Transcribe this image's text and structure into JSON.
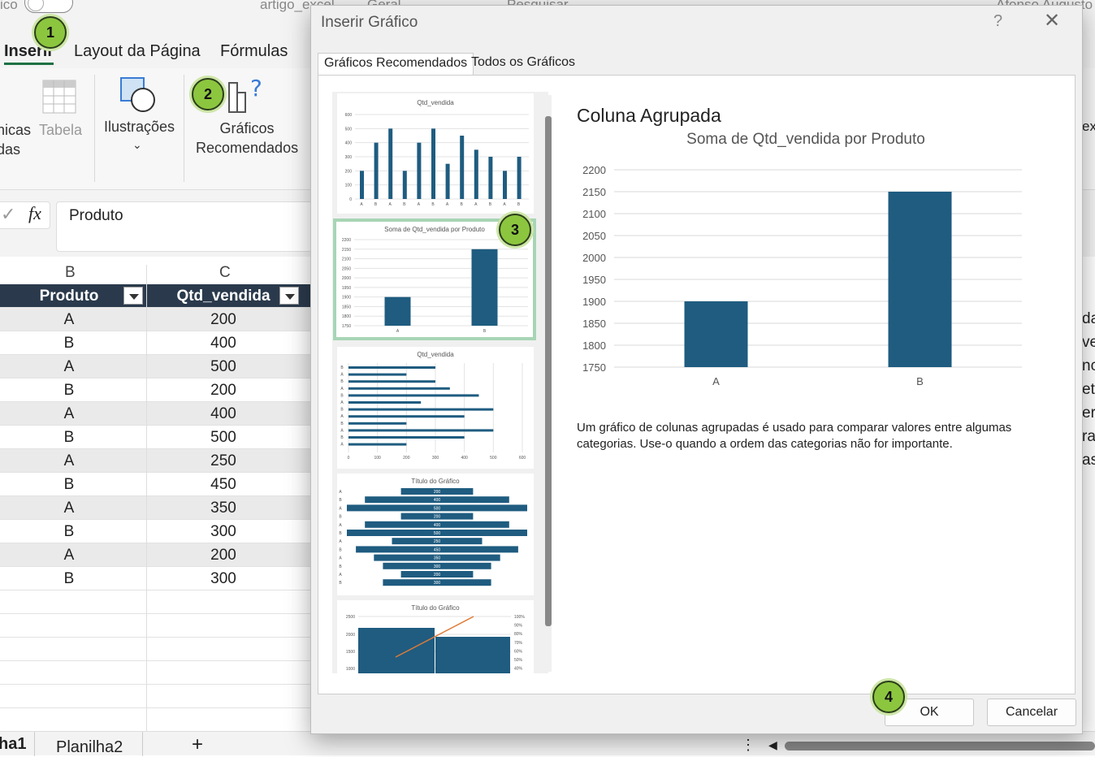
{
  "titlebar": {
    "left_text": "ico",
    "filename": "artigo_excel",
    "sensitivity": "Geral",
    "search": "Pesquisar",
    "user": "Afonso Augusto"
  },
  "ribbon_tabs": [
    "Inserir",
    "Layout da Página",
    "Fórmulas"
  ],
  "ribbon": {
    "tables_partial": "nicas\ndas",
    "table_label": "Tabela",
    "illustrations_label": "Ilustrações",
    "recommended_label": "Gráficos\nRecomendados",
    "right_partial": "ex"
  },
  "formula_bar": {
    "fx": "fx",
    "value": "Produto"
  },
  "columns": [
    "B",
    "C"
  ],
  "table": {
    "headers": [
      "Produto",
      "Qtd_vendida"
    ],
    "rows": [
      [
        "A",
        "200"
      ],
      [
        "B",
        "400"
      ],
      [
        "A",
        "500"
      ],
      [
        "B",
        "200"
      ],
      [
        "A",
        "400"
      ],
      [
        "B",
        "500"
      ],
      [
        "A",
        "250"
      ],
      [
        "B",
        "450"
      ],
      [
        "A",
        "350"
      ],
      [
        "B",
        "300"
      ],
      [
        "A",
        "200"
      ],
      [
        "B",
        "300"
      ]
    ]
  },
  "right_partial_cells": [
    "da",
    "ve",
    "nc",
    "et",
    "er",
    "ra",
    "as"
  ],
  "sheet_tabs": {
    "active_partial": "ha1",
    "other": "Planilha2",
    "add": "+"
  },
  "badges": [
    "1",
    "2",
    "3",
    "4"
  ],
  "dialog": {
    "title": "Inserir Gráfico",
    "help": "?",
    "close": "✕",
    "tabs": [
      "Gráficos Recomendados",
      "Todos os Gráficos"
    ],
    "preview_title": "Coluna Agrupada",
    "description": "Um gráfico de colunas agrupadas é usado para comparar valores entre algumas categorias. Use-o quando a ordem das categorias não for importante.",
    "ok": "OK",
    "cancel": "Cancelar",
    "thumbs": {
      "t1_title": "Qtd_vendida",
      "t2_title": "Soma de Qtd_vendida por Produto",
      "t3_title": "Qtd_vendida",
      "t4_title": "Título do Gráfico",
      "t5_title": "Título do Gráfico"
    }
  },
  "colors": {
    "bar": "#1f5c80",
    "header": "#2a3a4c",
    "selection": "#a8d5b5",
    "badge": "#8cc63f",
    "line": "#e07b39"
  },
  "chart_data": {
    "type": "bar",
    "title": "Soma de Qtd_vendida por Produto",
    "categories": [
      "A",
      "B"
    ],
    "values": [
      1900,
      2150
    ],
    "ylim": [
      1750,
      2200
    ],
    "yticks": [
      2200,
      2150,
      2100,
      2050,
      2000,
      1950,
      1900,
      1850,
      1800,
      1750
    ],
    "grid": true
  }
}
